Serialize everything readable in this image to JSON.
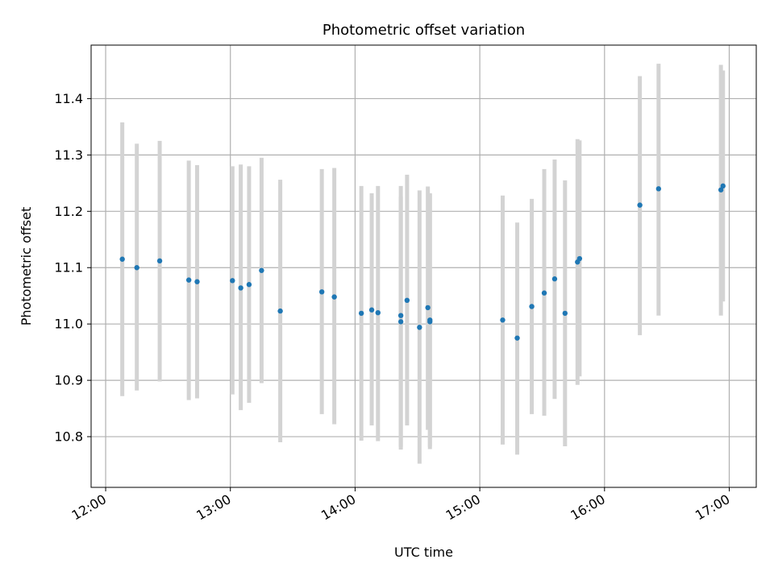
{
  "chart_data": {
    "type": "scatter",
    "title": "Photometric offset variation",
    "xlabel": "UTC time",
    "ylabel": "Photometric offset",
    "xlim": [
      "11:53",
      "17:13"
    ],
    "ylim": [
      10.71,
      11.495
    ],
    "x_ticks": [
      "12:00",
      "13:00",
      "14:00",
      "15:00",
      "16:00",
      "17:00"
    ],
    "y_ticks": [
      10.8,
      10.9,
      11.0,
      11.1,
      11.2,
      11.3,
      11.4
    ],
    "grid": true,
    "colors": {
      "points": "#1f77b4",
      "errorbars": "#d3d3d3",
      "grid": "#b0b0b0"
    },
    "points": [
      {
        "x": "12:08",
        "y": 11.115,
        "ymin": 10.872,
        "ymax": 11.358
      },
      {
        "x": "12:15",
        "y": 11.1,
        "ymin": 10.882,
        "ymax": 11.32
      },
      {
        "x": "12:26",
        "y": 11.112,
        "ymin": 10.898,
        "ymax": 11.325
      },
      {
        "x": "12:40",
        "y": 11.078,
        "ymin": 10.865,
        "ymax": 11.29
      },
      {
        "x": "12:44",
        "y": 11.075,
        "ymin": 10.868,
        "ymax": 11.282
      },
      {
        "x": "13:01",
        "y": 11.077,
        "ymin": 10.875,
        "ymax": 11.28
      },
      {
        "x": "13:05",
        "y": 11.064,
        "ymin": 10.847,
        "ymax": 11.283
      },
      {
        "x": "13:09",
        "y": 11.07,
        "ymin": 10.86,
        "ymax": 11.28
      },
      {
        "x": "13:15",
        "y": 11.095,
        "ymin": 10.895,
        "ymax": 11.295
      },
      {
        "x": "13:24",
        "y": 11.023,
        "ymin": 10.79,
        "ymax": 11.256
      },
      {
        "x": "13:44",
        "y": 11.057,
        "ymin": 10.84,
        "ymax": 11.275
      },
      {
        "x": "13:50",
        "y": 11.048,
        "ymin": 10.822,
        "ymax": 11.277
      },
      {
        "x": "14:03",
        "y": 11.019,
        "ymin": 10.793,
        "ymax": 11.245
      },
      {
        "x": "14:08",
        "y": 11.025,
        "ymin": 10.82,
        "ymax": 11.232
      },
      {
        "x": "14:11",
        "y": 11.02,
        "ymin": 10.792,
        "ymax": 11.245
      },
      {
        "x": "14:22",
        "y": 11.015,
        "ymin": 10.777,
        "ymax": 11.245
      },
      {
        "x": "14:22",
        "y": 11.004,
        "ymin": 10.782,
        "ymax": 11.226
      },
      {
        "x": "14:25",
        "y": 11.042,
        "ymin": 10.82,
        "ymax": 11.265
      },
      {
        "x": "14:31",
        "y": 10.994,
        "ymin": 10.752,
        "ymax": 11.237
      },
      {
        "x": "14:35",
        "y": 11.029,
        "ymin": 10.812,
        "ymax": 11.244
      },
      {
        "x": "14:36",
        "y": 11.004,
        "ymin": 10.778,
        "ymax": 11.23
      },
      {
        "x": "14:36",
        "y": 11.007,
        "ymin": 10.782,
        "ymax": 11.232
      },
      {
        "x": "15:11",
        "y": 11.007,
        "ymin": 10.786,
        "ymax": 11.228
      },
      {
        "x": "15:18",
        "y": 10.975,
        "ymin": 10.768,
        "ymax": 11.18
      },
      {
        "x": "15:25",
        "y": 11.031,
        "ymin": 10.84,
        "ymax": 11.222
      },
      {
        "x": "15:31",
        "y": 11.055,
        "ymin": 10.837,
        "ymax": 11.275
      },
      {
        "x": "15:36",
        "y": 11.08,
        "ymin": 10.867,
        "ymax": 11.292
      },
      {
        "x": "15:41",
        "y": 11.019,
        "ymin": 10.783,
        "ymax": 11.255
      },
      {
        "x": "15:47",
        "y": 11.11,
        "ymin": 10.892,
        "ymax": 11.328
      },
      {
        "x": "15:48",
        "y": 11.116,
        "ymin": 10.907,
        "ymax": 11.326
      },
      {
        "x": "16:17",
        "y": 11.211,
        "ymin": 10.98,
        "ymax": 11.44
      },
      {
        "x": "16:26",
        "y": 11.24,
        "ymin": 11.015,
        "ymax": 11.462
      },
      {
        "x": "16:56",
        "y": 11.238,
        "ymin": 11.015,
        "ymax": 11.46
      },
      {
        "x": "16:57",
        "y": 11.245,
        "ymin": 11.04,
        "ymax": 11.45
      }
    ]
  }
}
